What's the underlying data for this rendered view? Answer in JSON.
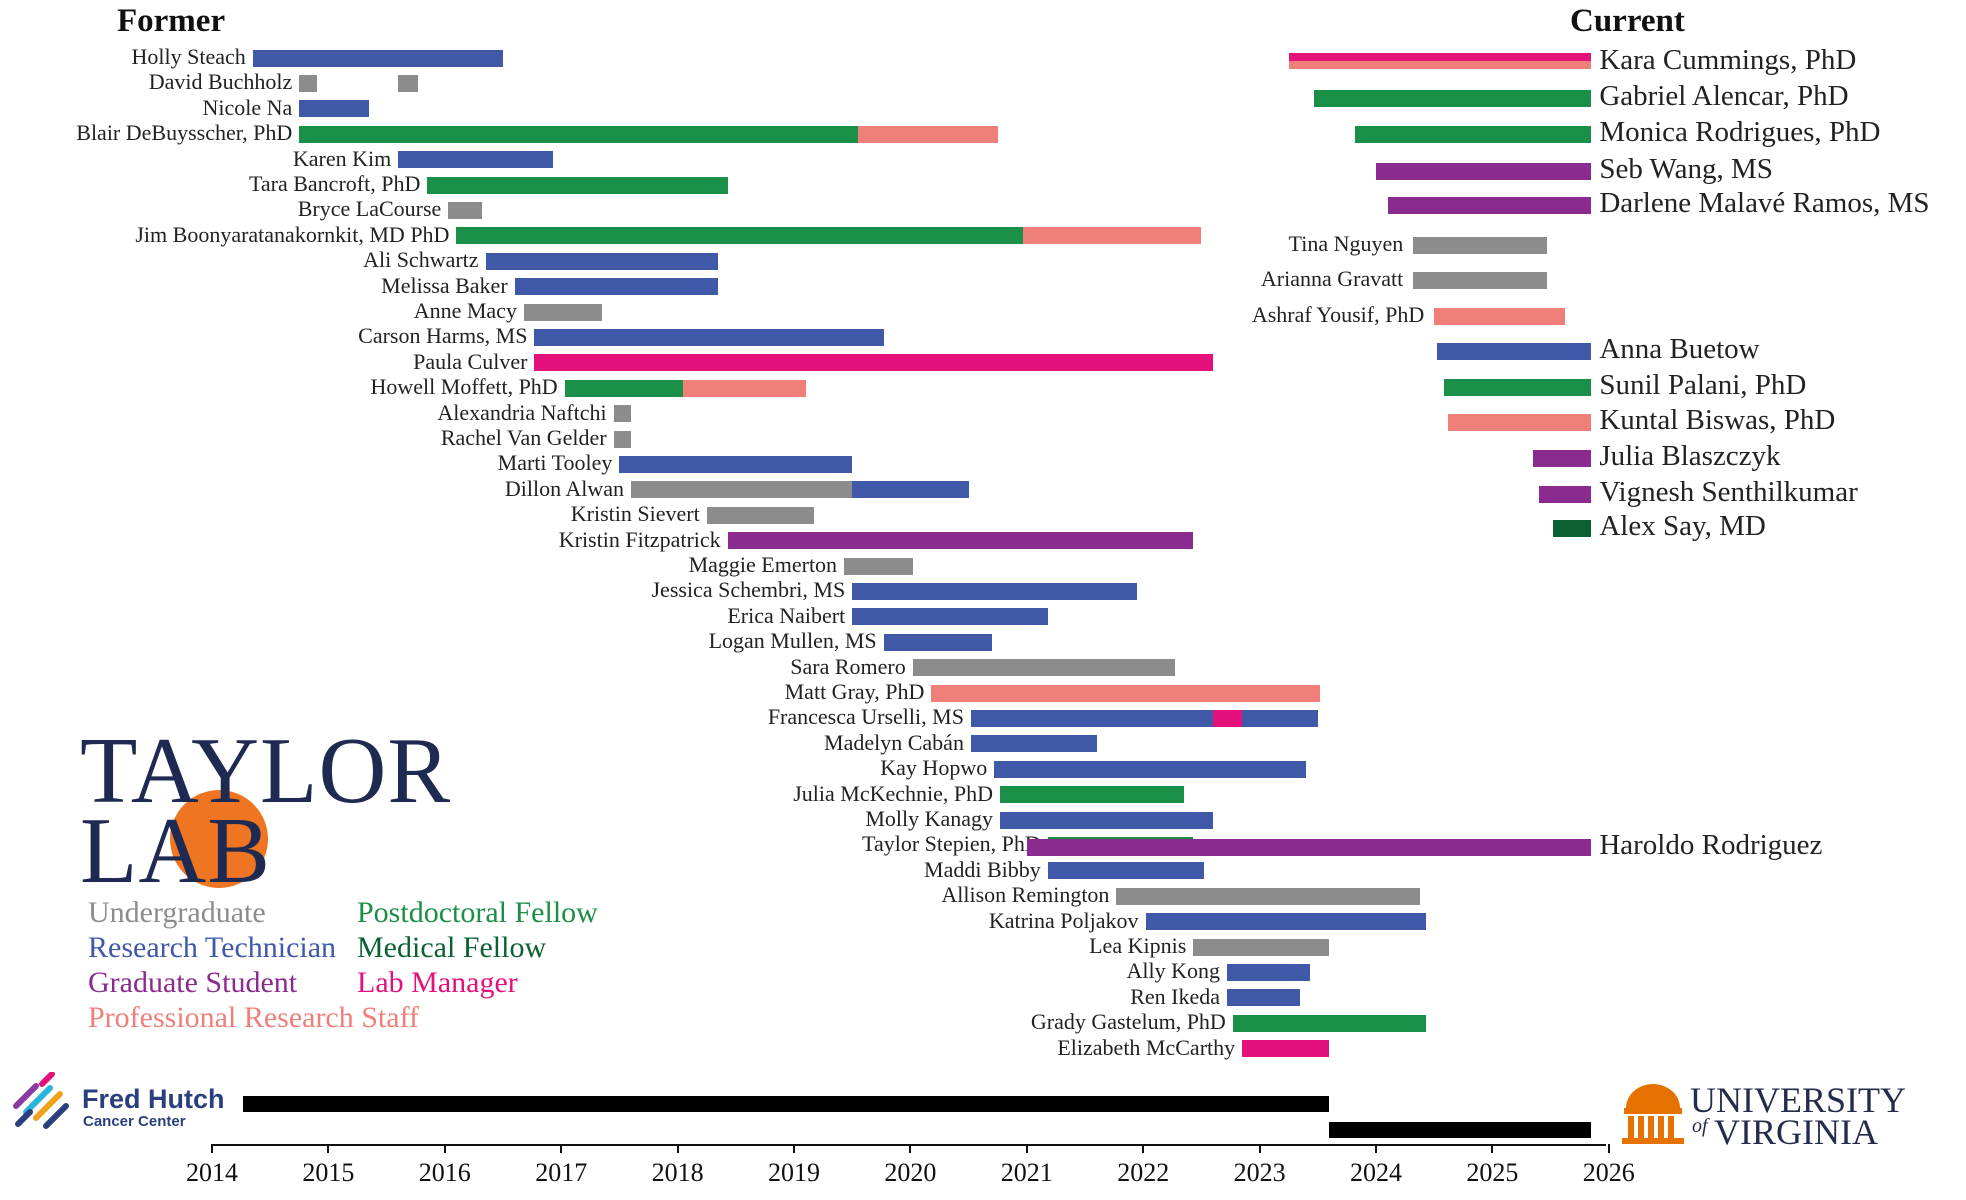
{
  "chart_data": {
    "type": "timeline",
    "title_left": "Former",
    "title_right": "Current",
    "xlim": [
      2014,
      2026
    ],
    "x_ticks": [
      "2014",
      "2015",
      "2016",
      "2017",
      "2018",
      "2019",
      "2020",
      "2021",
      "2022",
      "2023",
      "2024",
      "2025",
      "2026"
    ],
    "colors": {
      "undergraduate": "#8c8c8c",
      "tech": "#3f58a8",
      "grad": "#8b2a8f",
      "postdoc": "#1a8f47",
      "medical": "#0b6132",
      "manager": "#e4117c",
      "staff": "#f07f7a",
      "institution": "#000000"
    },
    "former": [
      {
        "name": "Holly Steach",
        "segments": [
          {
            "start": 2014.35,
            "end": 2016.5,
            "role": "tech"
          }
        ]
      },
      {
        "name": "David Buchholz",
        "segments": [
          {
            "start": 2014.75,
            "end": 2014.9,
            "role": "undergraduate"
          },
          {
            "start": 2015.6,
            "end": 2015.77,
            "role": "undergraduate"
          }
        ]
      },
      {
        "name": "Nicole Na",
        "segments": [
          {
            "start": 2014.75,
            "end": 2015.35,
            "role": "tech"
          }
        ]
      },
      {
        "name": "Blair DeBuysscher, PhD",
        "segments": [
          {
            "start": 2014.75,
            "end": 2019.55,
            "role": "postdoc"
          },
          {
            "start": 2019.55,
            "end": 2020.75,
            "role": "staff"
          }
        ]
      },
      {
        "name": "Karen Kim",
        "segments": [
          {
            "start": 2015.6,
            "end": 2016.93,
            "role": "tech"
          }
        ]
      },
      {
        "name": "Tara Bancroft, PhD",
        "segments": [
          {
            "start": 2015.85,
            "end": 2018.43,
            "role": "postdoc"
          }
        ]
      },
      {
        "name": "Bryce LaCourse",
        "segments": [
          {
            "start": 2016.03,
            "end": 2016.32,
            "role": "undergraduate"
          }
        ]
      },
      {
        "name": "Jim Boonyaratanakornkit, MD PhD",
        "segments": [
          {
            "start": 2016.1,
            "end": 2020.97,
            "role": "postdoc"
          },
          {
            "start": 2020.97,
            "end": 2022.5,
            "role": "staff"
          }
        ]
      },
      {
        "name": "Ali Schwartz",
        "segments": [
          {
            "start": 2016.35,
            "end": 2018.35,
            "role": "tech"
          }
        ]
      },
      {
        "name": "Melissa Baker",
        "segments": [
          {
            "start": 2016.6,
            "end": 2018.35,
            "role": "tech"
          }
        ]
      },
      {
        "name": "Anne Macy",
        "segments": [
          {
            "start": 2016.68,
            "end": 2017.35,
            "role": "undergraduate"
          }
        ]
      },
      {
        "name": "Carson Harms, MS",
        "segments": [
          {
            "start": 2016.77,
            "end": 2019.77,
            "role": "tech"
          }
        ]
      },
      {
        "name": "Paula Culver",
        "segments": [
          {
            "start": 2016.77,
            "end": 2022.6,
            "role": "manager"
          }
        ]
      },
      {
        "name": "Howell Moffett, PhD",
        "segments": [
          {
            "start": 2017.03,
            "end": 2018.05,
            "role": "postdoc"
          },
          {
            "start": 2018.05,
            "end": 2019.1,
            "role": "staff"
          }
        ]
      },
      {
        "name": "Alexandria Naftchi",
        "segments": [
          {
            "start": 2017.45,
            "end": 2017.6,
            "role": "undergraduate"
          }
        ]
      },
      {
        "name": "Rachel Van Gelder",
        "segments": [
          {
            "start": 2017.45,
            "end": 2017.6,
            "role": "undergraduate"
          }
        ]
      },
      {
        "name": "Marti Tooley",
        "segments": [
          {
            "start": 2017.5,
            "end": 2019.5,
            "role": "tech"
          }
        ]
      },
      {
        "name": "Dillon Alwan",
        "segments": [
          {
            "start": 2017.6,
            "end": 2019.5,
            "role": "undergraduate"
          },
          {
            "start": 2019.5,
            "end": 2020.5,
            "role": "tech"
          }
        ]
      },
      {
        "name": "Kristin Sievert",
        "segments": [
          {
            "start": 2018.25,
            "end": 2019.17,
            "role": "undergraduate"
          }
        ]
      },
      {
        "name": "Kristin Fitzpatrick",
        "segments": [
          {
            "start": 2018.43,
            "end": 2022.43,
            "role": "grad"
          }
        ]
      },
      {
        "name": "Maggie Emerton",
        "segments": [
          {
            "start": 2019.43,
            "end": 2020.02,
            "role": "undergraduate"
          }
        ]
      },
      {
        "name": "Jessica Schembri, MS",
        "segments": [
          {
            "start": 2019.5,
            "end": 2021.95,
            "role": "tech"
          }
        ]
      },
      {
        "name": "Erica Naibert",
        "segments": [
          {
            "start": 2019.5,
            "end": 2021.18,
            "role": "tech"
          }
        ]
      },
      {
        "name": "Logan Mullen, MS",
        "segments": [
          {
            "start": 2019.77,
            "end": 2020.7,
            "role": "tech"
          }
        ]
      },
      {
        "name": "Sara Romero",
        "segments": [
          {
            "start": 2020.02,
            "end": 2022.27,
            "role": "undergraduate"
          }
        ]
      },
      {
        "name": "Matt Gray, PhD",
        "segments": [
          {
            "start": 2020.18,
            "end": 2023.52,
            "role": "staff"
          }
        ]
      },
      {
        "name": "Francesca Urselli, MS",
        "segments": [
          {
            "start": 2020.52,
            "end": 2022.6,
            "role": "tech"
          },
          {
            "start": 2022.6,
            "end": 2022.85,
            "role": "manager"
          },
          {
            "start": 2022.85,
            "end": 2023.5,
            "role": "tech"
          }
        ]
      },
      {
        "name": "Madelyn Cabán",
        "segments": [
          {
            "start": 2020.52,
            "end": 2021.6,
            "role": "tech"
          }
        ]
      },
      {
        "name": "Kay Hopwo",
        "segments": [
          {
            "start": 2020.72,
            "end": 2023.4,
            "role": "tech"
          }
        ]
      },
      {
        "name": "Julia McKechnie, PhD",
        "segments": [
          {
            "start": 2020.77,
            "end": 2022.35,
            "role": "postdoc"
          }
        ]
      },
      {
        "name": "Molly Kanagy",
        "segments": [
          {
            "start": 2020.77,
            "end": 2022.6,
            "role": "tech"
          }
        ]
      },
      {
        "name": "Taylor Stepien, PhD",
        "segments": [
          {
            "start": 2021.18,
            "end": 2022.43,
            "role": "postdoc"
          }
        ]
      },
      {
        "name": "Maddi Bibby",
        "segments": [
          {
            "start": 2021.18,
            "end": 2022.52,
            "role": "tech"
          }
        ]
      },
      {
        "name": "Allison Remington",
        "segments": [
          {
            "start": 2021.77,
            "end": 2024.38,
            "role": "undergraduate"
          }
        ]
      },
      {
        "name": "Katrina Poljakov",
        "segments": [
          {
            "start": 2022.02,
            "end": 2024.43,
            "role": "tech"
          }
        ]
      },
      {
        "name": "Lea Kipnis",
        "segments": [
          {
            "start": 2022.43,
            "end": 2023.6,
            "role": "undergraduate"
          }
        ]
      },
      {
        "name": "Ally Kong",
        "segments": [
          {
            "start": 2022.72,
            "end": 2023.43,
            "role": "tech"
          }
        ]
      },
      {
        "name": "Ren Ikeda",
        "segments": [
          {
            "start": 2022.72,
            "end": 2023.35,
            "role": "tech"
          }
        ]
      },
      {
        "name": "Grady Gastelum, PhD",
        "segments": [
          {
            "start": 2022.77,
            "end": 2024.43,
            "role": "postdoc"
          }
        ]
      },
      {
        "name": "Elizabeth McCarthy",
        "segments": [
          {
            "start": 2022.85,
            "end": 2023.6,
            "role": "manager"
          }
        ]
      }
    ],
    "current": [
      {
        "name": "Kara Cummings, PhD",
        "segments": [
          {
            "start": 2023.25,
            "end": 2025.85,
            "role": "manager"
          },
          {
            "start": 2023.25,
            "end": 2025.85,
            "role": "staff"
          }
        ]
      },
      {
        "name": "Gabriel Alencar, PhD",
        "segments": [
          {
            "start": 2023.47,
            "end": 2025.85,
            "role": "postdoc"
          }
        ]
      },
      {
        "name": "Monica Rodrigues, PhD",
        "segments": [
          {
            "start": 2023.82,
            "end": 2025.85,
            "role": "postdoc"
          }
        ]
      },
      {
        "name": "Seb Wang, MS",
        "segments": [
          {
            "start": 2024.0,
            "end": 2025.85,
            "role": "grad"
          }
        ]
      },
      {
        "name": "Darlene Malavé Ramos, MS",
        "segments": [
          {
            "start": 2024.1,
            "end": 2025.85,
            "role": "grad"
          }
        ]
      },
      {
        "name": "Tina Nguyen",
        "segments": [
          {
            "start": 2024.32,
            "end": 2025.47,
            "role": "undergraduate"
          }
        ]
      },
      {
        "name": "Arianna Gravatt",
        "segments": [
          {
            "start": 2024.32,
            "end": 2025.47,
            "role": "undergraduate"
          }
        ]
      },
      {
        "name": "Ashraf  Yousif, PhD",
        "segments": [
          {
            "start": 2024.5,
            "end": 2025.62,
            "role": "staff"
          }
        ]
      },
      {
        "name": "Anna Buetow",
        "segments": [
          {
            "start": 2024.52,
            "end": 2025.85,
            "role": "tech"
          }
        ]
      },
      {
        "name": "Sunil Palani, PhD",
        "segments": [
          {
            "start": 2024.58,
            "end": 2025.85,
            "role": "postdoc"
          }
        ]
      },
      {
        "name": "Kuntal Biswas, PhD",
        "segments": [
          {
            "start": 2024.62,
            "end": 2025.85,
            "role": "staff"
          }
        ]
      },
      {
        "name": "Julia Blaszczyk",
        "segments": [
          {
            "start": 2025.35,
            "end": 2025.85,
            "role": "grad"
          }
        ]
      },
      {
        "name": "Vignesh Senthilkumar",
        "segments": [
          {
            "start": 2025.4,
            "end": 2025.85,
            "role": "grad"
          }
        ]
      },
      {
        "name": "Alex Say, MD",
        "segments": [
          {
            "start": 2025.52,
            "end": 2025.85,
            "role": "medical"
          }
        ]
      },
      {
        "name": "Haroldo Rodriguez",
        "segments": [
          {
            "start": 2021.0,
            "end": 2025.85,
            "role": "grad"
          }
        ]
      }
    ],
    "institutions": [
      {
        "name": "Fred Hutch",
        "subtitle": "Cancer Center",
        "start": 2014.27,
        "end": 2023.6
      },
      {
        "name": "University of Virginia",
        "start": 2023.6,
        "end": 2025.85
      }
    ],
    "legend": [
      {
        "label": "Undergraduate",
        "role": "undergraduate"
      },
      {
        "label": "Research Technician",
        "role": "tech"
      },
      {
        "label": "Graduate Student",
        "role": "grad"
      },
      {
        "label": "Professional Research Staff",
        "role": "staff"
      },
      {
        "label": "Postdoctoral Fellow",
        "role": "postdoc"
      },
      {
        "label": "Medical Fellow",
        "role": "medical"
      },
      {
        "label": "Lab Manager",
        "role": "manager"
      }
    ]
  },
  "logo": {
    "line1": "TAYLOR",
    "line2": "LAB"
  },
  "fred_hutch": {
    "name": "Fred Hutch",
    "subtitle": "Cancer Center"
  },
  "uva": {
    "line1": "UNIVERSITY",
    "line2_prefix": "of",
    "line2": "VIRGINIA"
  }
}
